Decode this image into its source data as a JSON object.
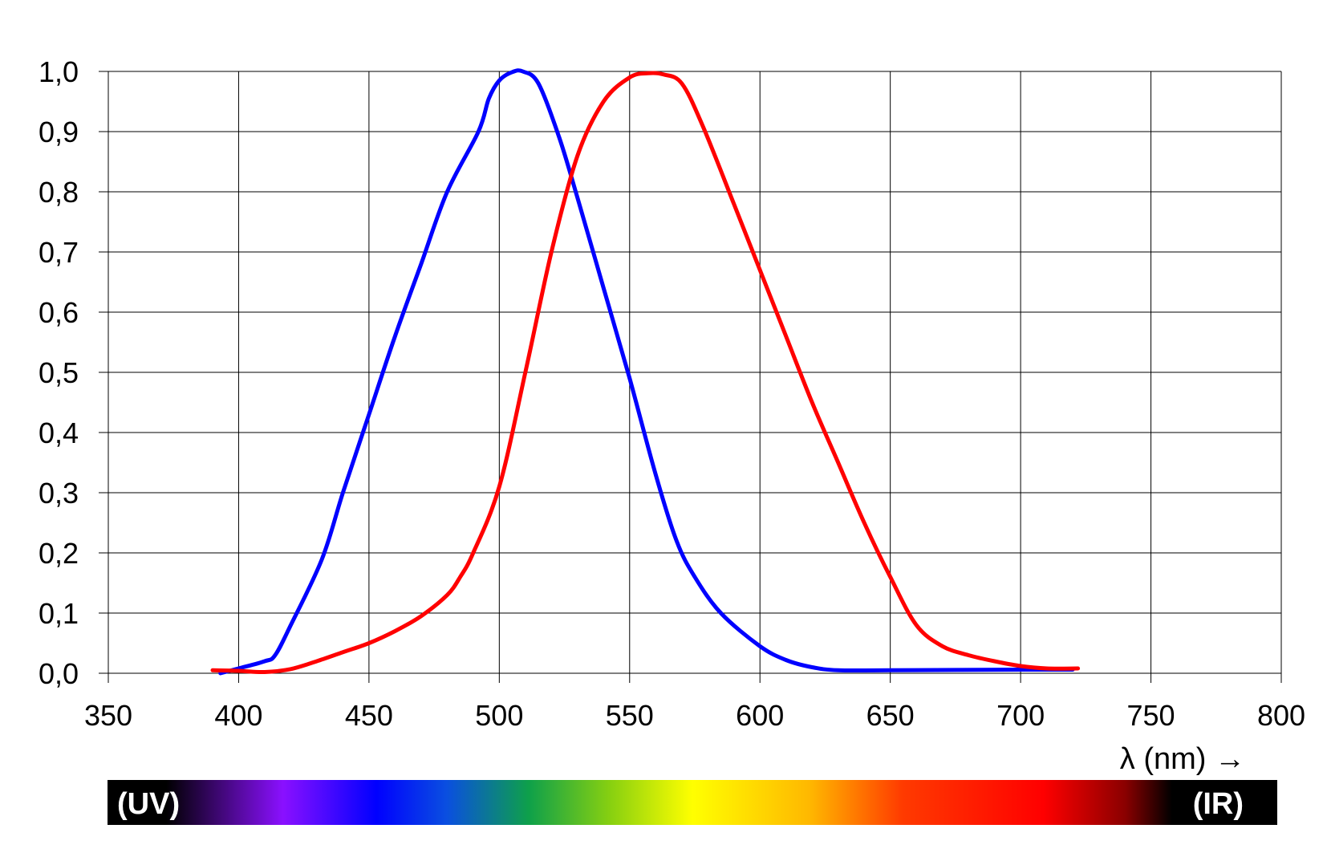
{
  "chart_data": {
    "type": "line",
    "xlabel": "λ (nm) →",
    "ylabel": "",
    "xlim": [
      350,
      800
    ],
    "ylim": [
      0,
      1
    ],
    "grid": true,
    "x_ticks": [
      "350",
      "400",
      "450",
      "500",
      "550",
      "600",
      "650",
      "700",
      "750",
      "800"
    ],
    "y_ticks": [
      "0,0",
      "0,1",
      "0,2",
      "0,3",
      "0,4",
      "0,5",
      "0,6",
      "0,7",
      "0,8",
      "0,9",
      "1,0"
    ],
    "series": [
      {
        "color": "#0000ff",
        "x": [
          393,
          400,
          410,
          414,
          420,
          432,
          440,
          450,
          460,
          470,
          480,
          492,
          496,
          500,
          505,
          509,
          515,
          523,
          530,
          540,
          550,
          560,
          568,
          575,
          585,
          600,
          610,
          620,
          630,
          650,
          700,
          720
        ],
        "y": [
          0.0,
          0.008,
          0.02,
          0.03,
          0.08,
          0.19,
          0.3,
          0.43,
          0.56,
          0.68,
          0.8,
          0.9,
          0.955,
          0.985,
          0.999,
          1.0,
          0.98,
          0.89,
          0.79,
          0.64,
          0.49,
          0.33,
          0.22,
          0.16,
          0.1,
          0.045,
          0.022,
          0.01,
          0.005,
          0.005,
          0.006,
          0.006
        ]
      },
      {
        "color": "#ff0000",
        "x": [
          390,
          400,
          410,
          420,
          430,
          440,
          450,
          460,
          470,
          480,
          485,
          490,
          500,
          510,
          520,
          530,
          540,
          550,
          557,
          563,
          570,
          578,
          590,
          600,
          610,
          620,
          630,
          640,
          650,
          660,
          670,
          680,
          690,
          700,
          710,
          722
        ],
        "y": [
          0.005,
          0.004,
          0.002,
          0.007,
          0.02,
          0.035,
          0.05,
          0.07,
          0.095,
          0.13,
          0.16,
          0.2,
          0.31,
          0.5,
          0.7,
          0.86,
          0.95,
          0.99,
          0.997,
          0.995,
          0.98,
          0.91,
          0.78,
          0.67,
          0.56,
          0.45,
          0.35,
          0.25,
          0.16,
          0.08,
          0.045,
          0.03,
          0.02,
          0.012,
          0.008,
          0.008
        ]
      }
    ]
  },
  "spectrum": {
    "left_label": "(UV)",
    "right_label": "(IR)",
    "stops": [
      {
        "offset": 0.0,
        "color": "#000000"
      },
      {
        "offset": 0.05,
        "color": "#000000"
      },
      {
        "offset": 0.15,
        "color": "#8a10ff"
      },
      {
        "offset": 0.23,
        "color": "#0000ff"
      },
      {
        "offset": 0.29,
        "color": "#0a4fe0"
      },
      {
        "offset": 0.36,
        "color": "#0ea04a"
      },
      {
        "offset": 0.43,
        "color": "#88d010"
      },
      {
        "offset": 0.5,
        "color": "#ffff00"
      },
      {
        "offset": 0.6,
        "color": "#ffb800"
      },
      {
        "offset": 0.68,
        "color": "#ff3a00"
      },
      {
        "offset": 0.8,
        "color": "#ff0000"
      },
      {
        "offset": 0.87,
        "color": "#8a0000"
      },
      {
        "offset": 0.91,
        "color": "#000000"
      },
      {
        "offset": 1.0,
        "color": "#000000"
      }
    ]
  }
}
